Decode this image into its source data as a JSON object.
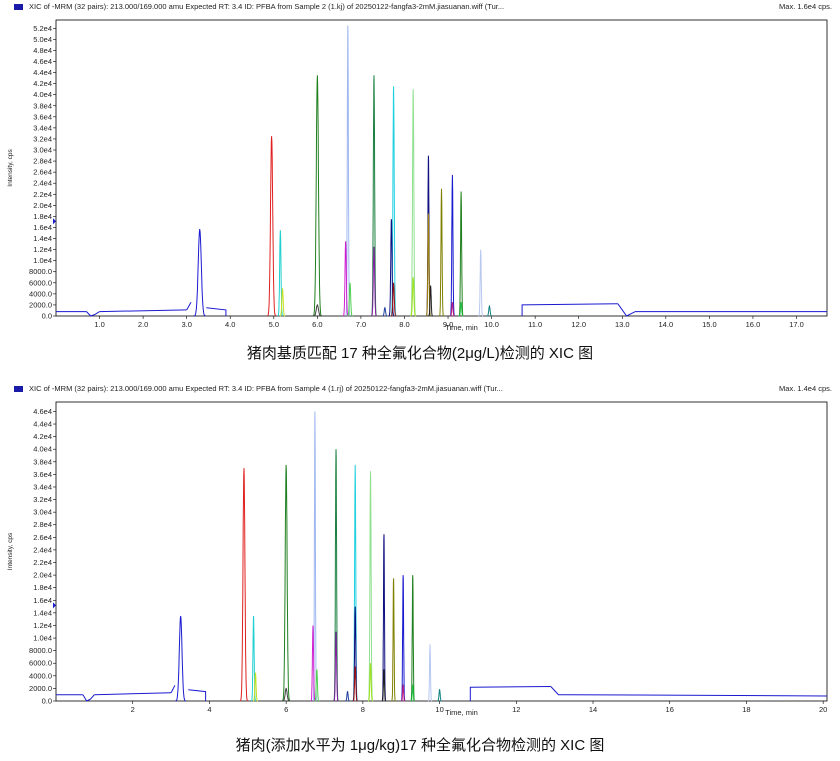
{
  "charts": [
    {
      "header": "XIC of -MRM (32 pairs): 213.000/169.000 amu Expected RT: 3.4 ID: PFBA from Sample 2 (1.kj) of 20250122-fangfa3-2mM.jiasuanan.wiff (Tur...",
      "max_label": "Max. 1.6e4 cps.",
      "caption": "猪肉基质匹配 17 种全氟化合物(2μg/L)检测的 XIC 图"
    },
    {
      "header": "XIC of -MRM (32 pairs): 213.000/169.000 amu Expected RT: 3.4 ID: PFBA from Sample 4 (1.rj) of 20250122-fangfa3-2mM.jiasuanan.wiff (Tur...",
      "max_label": "Max. 1.4e4 cps.",
      "caption": "猪肉(添加水平为 1μg/kg)17 种全氟化合物检测的 XIC 图"
    }
  ],
  "chart_data": [
    {
      "type": "line",
      "ylabel": "Intensity, cps",
      "xlabel": "Time, min",
      "xlim": [
        0,
        17.7
      ],
      "ylim": [
        0,
        53500
      ],
      "x_ticks": [
        "1.0",
        "2.0",
        "3.0",
        "4.0",
        "5.0",
        "6.0",
        "7.0",
        "8.0",
        "9.0",
        "10.0",
        "11.0",
        "12.0",
        "13.0",
        "14.0",
        "15.0",
        "16.0",
        "17.0"
      ],
      "x_tick_values": [
        1,
        2,
        3,
        4,
        5,
        6,
        7,
        8,
        9,
        10,
        11,
        12,
        13,
        14,
        15,
        16,
        17
      ],
      "y_ticks": [
        "0.0",
        "2000.0",
        "4000.0",
        "6000.0",
        "8000.0",
        "1.0e4",
        "1.2e4",
        "1.4e4",
        "1.6e4",
        "1.8e4",
        "2.0e4",
        "2.2e4",
        "2.4e4",
        "2.6e4",
        "2.8e4",
        "3.0e4",
        "3.2e4",
        "3.4e4",
        "3.6e4",
        "3.8e4",
        "4.0e4",
        "4.2e4",
        "4.4e4",
        "4.6e4",
        "4.8e4",
        "5.0e4",
        "5.2e4"
      ],
      "y_tick_values": [
        0,
        2000,
        4000,
        6000,
        8000,
        10000,
        12000,
        14000,
        16000,
        18000,
        20000,
        22000,
        24000,
        26000,
        28000,
        30000,
        32000,
        34000,
        36000,
        38000,
        40000,
        42000,
        44000,
        46000,
        48000,
        50000,
        52000
      ],
      "baseline": {
        "color": "#1a1ad0",
        "segments": [
          {
            "x": [
              0,
              0.7
            ],
            "y": [
              800,
              800
            ]
          },
          {
            "x": [
              0.7,
              0.8,
              0.9,
              1.0
            ],
            "y": [
              800,
              -300,
              300,
              800
            ]
          },
          {
            "x": [
              1.0,
              3.0
            ],
            "y": [
              800,
              1100
            ]
          },
          {
            "x": [
              3.0,
              3.1
            ],
            "y": [
              1100,
              2500
            ]
          },
          {
            "x": [
              3.45,
              3.9,
              3.9
            ],
            "y": [
              1500,
              1100,
              -200
            ]
          },
          {
            "x": [
              10.7,
              10.7,
              12.9
            ],
            "y": [
              -200,
              2000,
              2200
            ]
          },
          {
            "x": [
              12.9,
              13.1,
              13.3,
              17.7
            ],
            "y": [
              2200,
              -400,
              800,
              800
            ]
          }
        ]
      },
      "peaks": [
        {
          "rt": 3.3,
          "height": 15700,
          "width": 0.07,
          "color": "#1a1ad0"
        },
        {
          "rt": 4.95,
          "height": 32500,
          "width": 0.05,
          "color": "#e02020"
        },
        {
          "rt": 5.15,
          "height": 15500,
          "width": 0.03,
          "color": "#20d0d0"
        },
        {
          "rt": 5.2,
          "height": 5000,
          "width": 0.03,
          "color": "#c8e020"
        },
        {
          "rt": 6.0,
          "height": 43500,
          "width": 0.05,
          "color": "#208020"
        },
        {
          "rt": 6.0,
          "height": 2000,
          "width": 0.05,
          "color": "#404040"
        },
        {
          "rt": 6.7,
          "height": 52500,
          "width": 0.025,
          "color": "#a0b8f0"
        },
        {
          "rt": 6.65,
          "height": 13500,
          "width": 0.03,
          "color": "#d020d0"
        },
        {
          "rt": 6.75,
          "height": 6000,
          "width": 0.03,
          "color": "#50d050"
        },
        {
          "rt": 7.3,
          "height": 43500,
          "width": 0.03,
          "color": "#1a8040"
        },
        {
          "rt": 7.3,
          "height": 12500,
          "width": 0.03,
          "color": "#8020a0"
        },
        {
          "rt": 7.55,
          "height": 1500,
          "width": 0.03,
          "color": "#2040a0"
        },
        {
          "rt": 7.75,
          "height": 41500,
          "width": 0.03,
          "color": "#20d0e0"
        },
        {
          "rt": 7.7,
          "height": 17500,
          "width": 0.03,
          "color": "#101080"
        },
        {
          "rt": 7.75,
          "height": 6000,
          "width": 0.03,
          "color": "#a01010"
        },
        {
          "rt": 8.2,
          "height": 41000,
          "width": 0.03,
          "color": "#90e090"
        },
        {
          "rt": 8.2,
          "height": 7000,
          "width": 0.03,
          "color": "#a0e020"
        },
        {
          "rt": 8.55,
          "height": 29000,
          "width": 0.025,
          "color": "#101080"
        },
        {
          "rt": 8.55,
          "height": 18500,
          "width": 0.025,
          "color": "#a08000"
        },
        {
          "rt": 8.6,
          "height": 5500,
          "width": 0.025,
          "color": "#202020"
        },
        {
          "rt": 8.85,
          "height": 23000,
          "width": 0.025,
          "color": "#808000"
        },
        {
          "rt": 9.1,
          "height": 25500,
          "width": 0.025,
          "color": "#1a1ad0"
        },
        {
          "rt": 9.1,
          "height": 2500,
          "width": 0.025,
          "color": "#c02080"
        },
        {
          "rt": 9.3,
          "height": 22500,
          "width": 0.025,
          "color": "#208020"
        },
        {
          "rt": 9.3,
          "height": 2500,
          "width": 0.025,
          "color": "#20c040"
        },
        {
          "rt": 9.75,
          "height": 12000,
          "width": 0.025,
          "color": "#b8c8f0"
        },
        {
          "rt": 9.95,
          "height": 1800,
          "width": 0.03,
          "color": "#108080"
        }
      ]
    },
    {
      "type": "line",
      "ylabel": "Intensity, cps",
      "xlabel": "Time, min",
      "xlim": [
        0,
        20.1
      ],
      "ylim": [
        0,
        47500
      ],
      "x_ticks": [
        "2",
        "4",
        "6",
        "8",
        "10",
        "12",
        "14",
        "16",
        "18",
        "20"
      ],
      "x_tick_values": [
        2,
        4,
        6,
        8,
        10,
        12,
        14,
        16,
        18,
        20
      ],
      "y_ticks": [
        "0.0",
        "2000.0",
        "4000.0",
        "6000.0",
        "8000.0",
        "1.0e4",
        "1.2e4",
        "1.4e4",
        "1.6e4",
        "1.8e4",
        "2.0e4",
        "2.2e4",
        "2.4e4",
        "2.6e4",
        "2.8e4",
        "3.0e4",
        "3.2e4",
        "3.4e4",
        "3.6e4",
        "3.8e4",
        "4.0e4",
        "4.2e4",
        "4.4e4",
        "4.6e4"
      ],
      "y_tick_values": [
        0,
        2000,
        4000,
        6000,
        8000,
        10000,
        12000,
        14000,
        16000,
        18000,
        20000,
        22000,
        24000,
        26000,
        28000,
        30000,
        32000,
        34000,
        36000,
        38000,
        40000,
        42000,
        44000,
        46000
      ],
      "baseline": {
        "color": "#1a1ad0",
        "segments": [
          {
            "x": [
              0,
              0.7
            ],
            "y": [
              1000,
              1000
            ]
          },
          {
            "x": [
              0.7,
              0.8,
              0.9,
              1.0
            ],
            "y": [
              1000,
              -200,
              300,
              1000
            ]
          },
          {
            "x": [
              1.0,
              3.0
            ],
            "y": [
              1000,
              1300
            ]
          },
          {
            "x": [
              3.0,
              3.1
            ],
            "y": [
              1300,
              2500
            ]
          },
          {
            "x": [
              3.45,
              3.9,
              3.9
            ],
            "y": [
              1800,
              1500,
              -200
            ]
          },
          {
            "x": [
              10.8,
              10.8,
              12.9
            ],
            "y": [
              -200,
              2200,
              2300
            ]
          },
          {
            "x": [
              12.9,
              13.1,
              13.3,
              20.1
            ],
            "y": [
              2300,
              1000,
              1000,
              800
            ]
          }
        ]
      },
      "peaks": [
        {
          "rt": 3.25,
          "height": 13500,
          "width": 0.07,
          "color": "#1a1ad0"
        },
        {
          "rt": 4.9,
          "height": 37000,
          "width": 0.05,
          "color": "#e02020"
        },
        {
          "rt": 5.15,
          "height": 13500,
          "width": 0.03,
          "color": "#20d0d0"
        },
        {
          "rt": 5.2,
          "height": 4500,
          "width": 0.03,
          "color": "#c8e020"
        },
        {
          "rt": 6.0,
          "height": 37500,
          "width": 0.05,
          "color": "#208020"
        },
        {
          "rt": 6.0,
          "height": 2000,
          "width": 0.05,
          "color": "#404040"
        },
        {
          "rt": 6.75,
          "height": 46000,
          "width": 0.025,
          "color": "#a0b8f0"
        },
        {
          "rt": 6.7,
          "height": 12000,
          "width": 0.03,
          "color": "#d020d0"
        },
        {
          "rt": 6.8,
          "height": 5000,
          "width": 0.03,
          "color": "#50d050"
        },
        {
          "rt": 7.3,
          "height": 40000,
          "width": 0.03,
          "color": "#1a8040"
        },
        {
          "rt": 7.3,
          "height": 11000,
          "width": 0.03,
          "color": "#8020a0"
        },
        {
          "rt": 7.6,
          "height": 1500,
          "width": 0.03,
          "color": "#2040a0"
        },
        {
          "rt": 7.8,
          "height": 37500,
          "width": 0.03,
          "color": "#20d0e0"
        },
        {
          "rt": 7.8,
          "height": 15000,
          "width": 0.03,
          "color": "#101080"
        },
        {
          "rt": 7.8,
          "height": 5500,
          "width": 0.03,
          "color": "#a01010"
        },
        {
          "rt": 8.2,
          "height": 36500,
          "width": 0.03,
          "color": "#90e090"
        },
        {
          "rt": 8.2,
          "height": 6000,
          "width": 0.03,
          "color": "#a0e020"
        },
        {
          "rt": 8.55,
          "height": 26500,
          "width": 0.025,
          "color": "#101080"
        },
        {
          "rt": 8.55,
          "height": 5000,
          "width": 0.025,
          "color": "#202020"
        },
        {
          "rt": 8.8,
          "height": 19500,
          "width": 0.025,
          "color": "#808000"
        },
        {
          "rt": 9.05,
          "height": 20000,
          "width": 0.025,
          "color": "#1a1ad0"
        },
        {
          "rt": 9.05,
          "height": 2500,
          "width": 0.025,
          "color": "#c02080"
        },
        {
          "rt": 9.3,
          "height": 20000,
          "width": 0.025,
          "color": "#208020"
        },
        {
          "rt": 9.3,
          "height": 2500,
          "width": 0.025,
          "color": "#20c040"
        },
        {
          "rt": 9.75,
          "height": 9000,
          "width": 0.025,
          "color": "#b8c8f0"
        },
        {
          "rt": 10.0,
          "height": 1800,
          "width": 0.03,
          "color": "#108080"
        }
      ]
    }
  ]
}
